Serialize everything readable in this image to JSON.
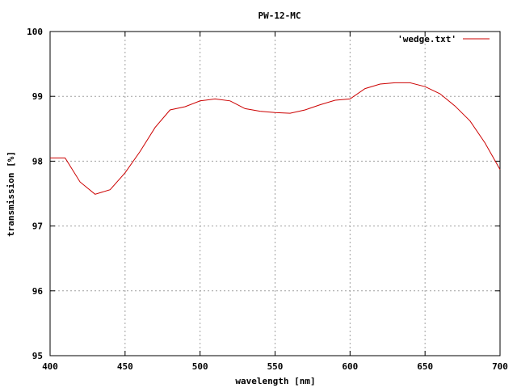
{
  "chart_data": {
    "type": "line",
    "title": "PW-12-MC",
    "xlabel": "wavelength [nm]",
    "ylabel": "transmission [%]",
    "xlim": [
      400,
      700
    ],
    "ylim": [
      95,
      100
    ],
    "xticks": [
      "400",
      "450",
      "500",
      "550",
      "600",
      "650",
      "700"
    ],
    "yticks": [
      "95",
      "96",
      "97",
      "98",
      "99",
      "100"
    ],
    "grid": true,
    "legend_position": "top-right",
    "series": [
      {
        "name": "'wedge.txt'",
        "color": "#cc0000",
        "x": [
          400,
          410,
          420,
          430,
          440,
          450,
          460,
          470,
          480,
          490,
          500,
          510,
          520,
          530,
          540,
          550,
          560,
          570,
          580,
          590,
          600,
          610,
          620,
          630,
          640,
          650,
          660,
          670,
          680,
          690,
          700
        ],
        "y": [
          98.05,
          98.05,
          97.68,
          97.49,
          97.56,
          97.82,
          98.15,
          98.52,
          98.79,
          98.84,
          98.93,
          98.96,
          98.93,
          98.81,
          98.77,
          98.75,
          98.74,
          98.79,
          98.87,
          98.94,
          98.96,
          99.12,
          99.19,
          99.21,
          99.21,
          99.15,
          99.04,
          98.85,
          98.62,
          98.28,
          97.87
        ]
      }
    ]
  }
}
